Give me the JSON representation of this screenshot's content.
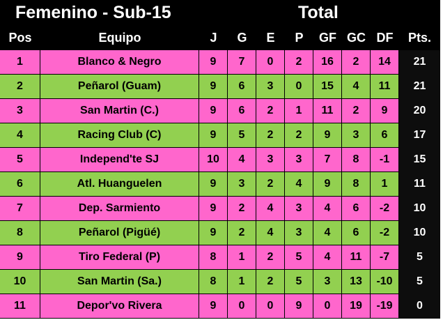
{
  "title": "Femenino - Sub-15",
  "subtitle": "Total",
  "headers": [
    "Pos",
    "Equipo",
    "J",
    "G",
    "E",
    "P",
    "GF",
    "GC",
    "DF",
    "Pts."
  ],
  "colors": {
    "pink": "#ff66cc",
    "green": "#92d050",
    "header_bg": "#000000"
  },
  "rows": [
    [
      "1",
      "Blanco & Negro",
      "9",
      "7",
      "0",
      "2",
      "16",
      "2",
      "14",
      "21"
    ],
    [
      "2",
      "Peñarol (Guam)",
      "9",
      "6",
      "3",
      "0",
      "15",
      "4",
      "11",
      "21"
    ],
    [
      "3",
      "San Martin (C.)",
      "9",
      "6",
      "2",
      "1",
      "11",
      "2",
      "9",
      "20"
    ],
    [
      "4",
      "Racing Club (C)",
      "9",
      "5",
      "2",
      "2",
      "9",
      "3",
      "6",
      "17"
    ],
    [
      "5",
      "Independ'te SJ",
      "10",
      "4",
      "3",
      "3",
      "7",
      "8",
      "-1",
      "15"
    ],
    [
      "6",
      "Atl. Huanguelen",
      "9",
      "3",
      "2",
      "4",
      "9",
      "8",
      "1",
      "11"
    ],
    [
      "7",
      "Dep. Sarmiento",
      "9",
      "2",
      "4",
      "3",
      "4",
      "6",
      "-2",
      "10"
    ],
    [
      "8",
      "Peñarol (Pigüé)",
      "9",
      "2",
      "4",
      "3",
      "4",
      "6",
      "-2",
      "10"
    ],
    [
      "9",
      "Tiro Federal (P)",
      "8",
      "1",
      "2",
      "5",
      "4",
      "11",
      "-7",
      "5"
    ],
    [
      "10",
      "San Martin (Sa.)",
      "8",
      "1",
      "2",
      "5",
      "3",
      "13",
      "-10",
      "5"
    ],
    [
      "11",
      "Depor'vo Rivera",
      "9",
      "0",
      "0",
      "9",
      "0",
      "19",
      "-19",
      "0"
    ]
  ]
}
